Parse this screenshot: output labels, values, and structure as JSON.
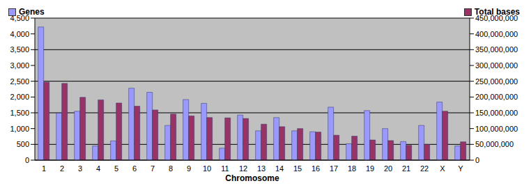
{
  "chart_data": {
    "type": "bar",
    "x_label": "Chromosome",
    "categories": [
      "1",
      "2",
      "3",
      "4",
      "5",
      "6",
      "7",
      "8",
      "9",
      "10",
      "11",
      "12",
      "13",
      "14",
      "15",
      "16",
      "17",
      "18",
      "19",
      "20",
      "21",
      "22",
      "X",
      "Y"
    ],
    "series": [
      {
        "name": "Genes",
        "color": "#9999ff",
        "axis": "y",
        "values": [
          4220,
          1490,
          1550,
          450,
          610,
          2280,
          2150,
          1100,
          1920,
          1800,
          380,
          1430,
          930,
          1350,
          930,
          900,
          1680,
          520,
          1570,
          1000,
          590,
          1100,
          1840,
          450
        ]
      },
      {
        "name": "Total bases",
        "color": "#993366",
        "axis": "y2",
        "values": [
          247000000,
          243000000,
          199000000,
          191000000,
          181000000,
          171000000,
          159000000,
          146000000,
          140000000,
          135000000,
          134000000,
          132000000,
          114000000,
          106000000,
          100000000,
          89000000,
          79000000,
          76000000,
          64000000,
          62000000,
          47000000,
          50000000,
          155000000,
          58000000
        ]
      }
    ],
    "ylim": [
      0,
      4500
    ],
    "yticks": [
      0,
      500,
      {
        "value": 1000,
        "label": "1,000"
      },
      {
        "value": 1500,
        "label": "1,500"
      },
      {
        "value": 2000,
        "label": "2,000"
      },
      {
        "value": 2500,
        "label": "2,500"
      },
      {
        "value": 3000,
        "label": "3,000"
      },
      {
        "value": 3500,
        "label": "3,500"
      },
      {
        "value": 4000,
        "label": "4,000"
      },
      {
        "value": 4500,
        "label": "4,500"
      }
    ],
    "y2lim": [
      0,
      450000000
    ],
    "y2ticks": [
      0,
      {
        "value": 50000000,
        "label": "50,000,000"
      },
      {
        "value": 100000000,
        "label": "100,000,000"
      },
      {
        "value": 150000000,
        "label": "150,000,000"
      },
      {
        "value": 200000000,
        "label": "200,000,000"
      },
      {
        "value": 250000000,
        "label": "250,000,000"
      },
      {
        "value": 300000000,
        "label": "300,000,000"
      },
      {
        "value": 350000000,
        "label": "350,000,000"
      },
      {
        "value": 400000000,
        "label": "400,000,000"
      },
      {
        "value": 450000000,
        "label": "450,000,000"
      }
    ],
    "grid": true,
    "legend": "top"
  }
}
